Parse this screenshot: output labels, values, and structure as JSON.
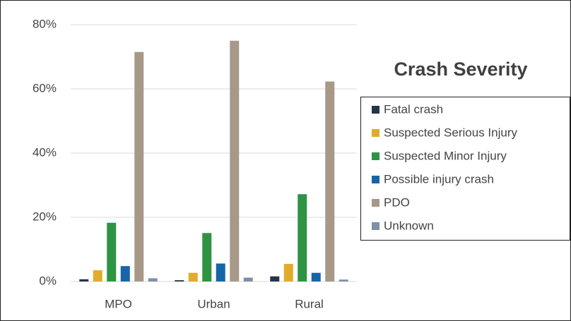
{
  "chart_data": {
    "type": "bar",
    "title": "Crash Severity",
    "categories": [
      "MPO",
      "Urban",
      "Rural"
    ],
    "series": [
      {
        "name": "Fatal crash",
        "color": "#263548",
        "values": [
          0.7,
          0.4,
          1.6
        ]
      },
      {
        "name": "Suspected Serious Injury",
        "color": "#e0ac2b",
        "values": [
          3.5,
          2.7,
          5.5
        ]
      },
      {
        "name": "Suspected Minor Injury",
        "color": "#2e9444",
        "values": [
          18.3,
          15.1,
          27.2
        ]
      },
      {
        "name": "Possible injury crash",
        "color": "#1565a8",
        "values": [
          4.8,
          5.6,
          2.7
        ]
      },
      {
        "name": "PDO",
        "color": "#a89888",
        "values": [
          71.5,
          75.0,
          62.3
        ]
      },
      {
        "name": "Unknown",
        "color": "#7f8fa6",
        "values": [
          1.0,
          1.2,
          0.6
        ]
      }
    ],
    "ylim": [
      0,
      80
    ],
    "yticks": [
      {
        "value": 0,
        "label": "0%"
      },
      {
        "value": 20,
        "label": "20%"
      },
      {
        "value": 40,
        "label": "40%"
      },
      {
        "value": 60,
        "label": "60%"
      },
      {
        "value": 80,
        "label": "80%"
      }
    ],
    "grid": true,
    "legend": "right"
  }
}
